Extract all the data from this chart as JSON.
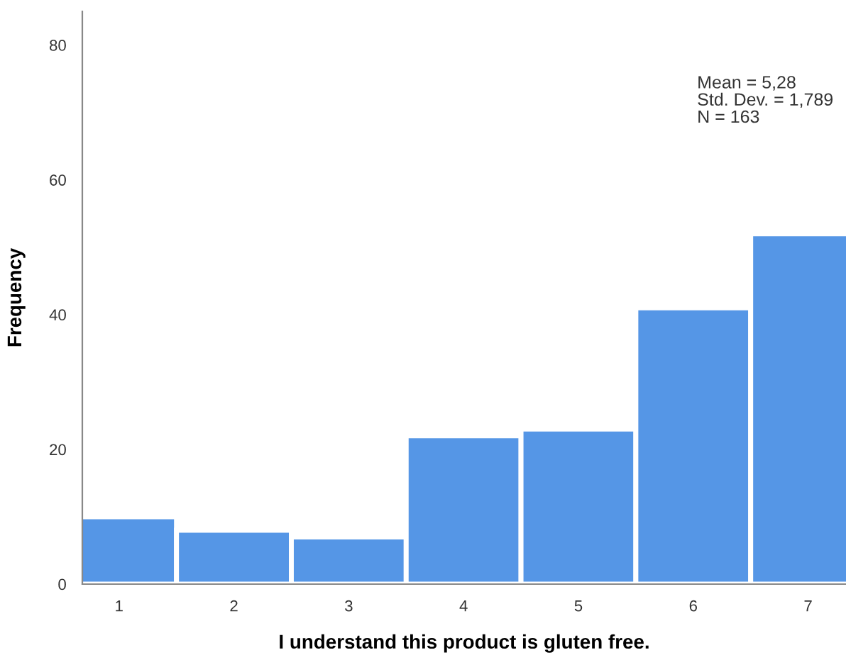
{
  "chart_data": {
    "type": "histogram",
    "xlabel": "I understand this product is gluten free.",
    "ylabel": "Frequency",
    "bins": [
      0.5,
      1.5,
      2.5,
      3.5,
      4.5,
      5.5,
      6.5,
      7.5
    ],
    "values": [
      10,
      8,
      7,
      22,
      23,
      41,
      52
    ],
    "color": "#5596e6",
    "xlim": [
      0.68,
      7.33
    ],
    "xticks": [
      1,
      2,
      3,
      4,
      5,
      6,
      7
    ],
    "ylim": [
      0,
      85
    ],
    "yticks": [
      0,
      20,
      40,
      60,
      80
    ],
    "grid": false,
    "annotations": [
      "Mean = 5,28",
      "Std. Dev. = 1,789",
      "N = 163"
    ]
  }
}
